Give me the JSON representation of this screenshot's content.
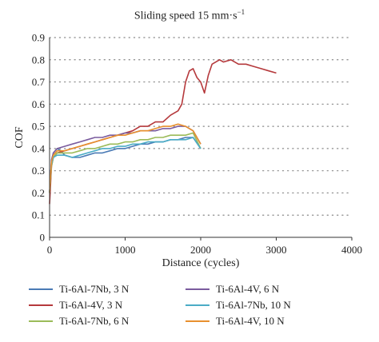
{
  "chart_data": {
    "type": "line",
    "title_main": "Sliding speed 15 mm·s",
    "title_sup": "−1",
    "xlabel": "Distance (cycles)",
    "ylabel": "COF",
    "xlim": [
      0,
      4000
    ],
    "ylim": [
      0,
      0.9
    ],
    "xticks": [
      "0",
      "1000",
      "2000",
      "3000",
      "4000"
    ],
    "yticks": [
      "0",
      "0.1",
      "0.2",
      "0.3",
      "0.4",
      "0.5",
      "0.6",
      "0.7",
      "0.8",
      "0.9"
    ],
    "grid": "horizontal-dotted",
    "legend_position": "bottom",
    "series": [
      {
        "name": "Ti-6Al-7Nb, 3 N",
        "color": "#4a7ab5",
        "x": [
          0,
          25,
          50,
          100,
          150,
          200,
          300,
          400,
          500,
          600,
          700,
          800,
          900,
          1000,
          1100,
          1200,
          1300,
          1400,
          1500,
          1600,
          1700,
          1800,
          1900,
          2000
        ],
        "y": [
          0.2,
          0.34,
          0.38,
          0.4,
          0.39,
          0.37,
          0.36,
          0.36,
          0.37,
          0.38,
          0.38,
          0.39,
          0.4,
          0.4,
          0.41,
          0.42,
          0.42,
          0.43,
          0.43,
          0.44,
          0.44,
          0.45,
          0.45,
          0.4
        ]
      },
      {
        "name": "Ti-6Al-4V, 3 N",
        "color": "#b5393c",
        "x": [
          0,
          25,
          50,
          100,
          200,
          300,
          400,
          500,
          600,
          700,
          800,
          900,
          1000,
          1100,
          1200,
          1300,
          1400,
          1500,
          1600,
          1700,
          1750,
          1800,
          1850,
          1900,
          1950,
          2000,
          2050,
          2100,
          2150,
          2200,
          2250,
          2300,
          2400,
          2500,
          2600,
          2700,
          2800,
          2900,
          3000
        ],
        "y": [
          0.15,
          0.32,
          0.36,
          0.38,
          0.39,
          0.4,
          0.41,
          0.42,
          0.43,
          0.44,
          0.45,
          0.46,
          0.47,
          0.48,
          0.5,
          0.5,
          0.52,
          0.52,
          0.55,
          0.57,
          0.6,
          0.7,
          0.75,
          0.76,
          0.72,
          0.7,
          0.65,
          0.73,
          0.78,
          0.79,
          0.8,
          0.79,
          0.8,
          0.78,
          0.78,
          0.77,
          0.76,
          0.75,
          0.74
        ]
      },
      {
        "name": "Ti-6Al-7Nb, 6 N",
        "color": "#9bbb59",
        "x": [
          0,
          25,
          50,
          100,
          200,
          300,
          400,
          500,
          600,
          700,
          800,
          900,
          1000,
          1100,
          1200,
          1300,
          1400,
          1500,
          1600,
          1700,
          1800,
          1900,
          2000
        ],
        "y": [
          0.2,
          0.32,
          0.36,
          0.38,
          0.38,
          0.38,
          0.39,
          0.4,
          0.4,
          0.41,
          0.42,
          0.42,
          0.43,
          0.43,
          0.44,
          0.44,
          0.45,
          0.45,
          0.46,
          0.46,
          0.46,
          0.47,
          0.4
        ]
      },
      {
        "name": "Ti-6Al-4V, 6 N",
        "color": "#7a5b9e",
        "x": [
          0,
          25,
          50,
          100,
          200,
          300,
          400,
          500,
          600,
          700,
          800,
          900,
          1000,
          1100,
          1200,
          1300,
          1400,
          1500,
          1600,
          1700,
          1800,
          1900,
          2000
        ],
        "y": [
          0.2,
          0.35,
          0.38,
          0.4,
          0.41,
          0.42,
          0.43,
          0.44,
          0.45,
          0.45,
          0.46,
          0.46,
          0.47,
          0.47,
          0.48,
          0.48,
          0.48,
          0.49,
          0.49,
          0.5,
          0.5,
          0.48,
          0.42
        ]
      },
      {
        "name": "Ti-6Al-7Nb, 10 N",
        "color": "#4bacc6",
        "x": [
          0,
          25,
          50,
          100,
          200,
          300,
          400,
          500,
          600,
          700,
          800,
          900,
          1000,
          1100,
          1200,
          1300,
          1400,
          1500,
          1600,
          1700,
          1800,
          1900,
          2000
        ],
        "y": [
          0.2,
          0.33,
          0.36,
          0.37,
          0.37,
          0.36,
          0.37,
          0.38,
          0.39,
          0.4,
          0.4,
          0.41,
          0.41,
          0.42,
          0.42,
          0.43,
          0.43,
          0.43,
          0.44,
          0.44,
          0.44,
          0.45,
          0.4
        ]
      },
      {
        "name": "Ti-6Al-4V, 10 N",
        "color": "#e8902e",
        "x": [
          0,
          25,
          50,
          100,
          200,
          300,
          400,
          500,
          600,
          700,
          800,
          900,
          1000,
          1100,
          1200,
          1300,
          1400,
          1500,
          1600,
          1700,
          1800,
          1900,
          2000
        ],
        "y": [
          0.2,
          0.34,
          0.37,
          0.39,
          0.39,
          0.4,
          0.41,
          0.42,
          0.43,
          0.44,
          0.45,
          0.46,
          0.46,
          0.47,
          0.48,
          0.48,
          0.49,
          0.5,
          0.5,
          0.51,
          0.5,
          0.48,
          0.42
        ]
      }
    ]
  }
}
